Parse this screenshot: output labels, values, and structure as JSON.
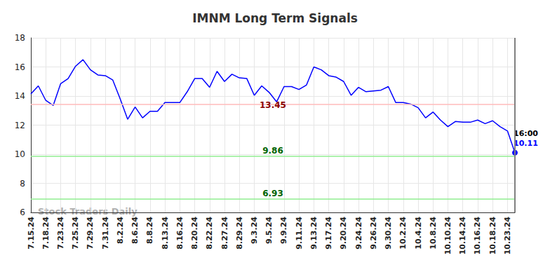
{
  "chart_data": {
    "type": "line",
    "title": "IMNM Long Term Signals",
    "categories": [
      "7.15.24",
      null,
      "7.18.24",
      null,
      "7.23.24",
      null,
      "7.25.24",
      null,
      "7.29.24",
      null,
      "7.31.24",
      null,
      "8.2.24",
      null,
      "8.6.24",
      null,
      "8.8.24",
      null,
      "8.13.24",
      null,
      "8.16.24",
      null,
      "8.20.24",
      null,
      "8.22.24",
      null,
      "8.27.24",
      null,
      "8.29.24",
      null,
      "9.3.24",
      null,
      "9.5.24",
      null,
      "9.9.24",
      null,
      "9.11.24",
      null,
      "9.13.24",
      null,
      "9.17.24",
      null,
      "9.20.24",
      null,
      "9.24.24",
      null,
      "9.26.24",
      null,
      "9.30.24",
      null,
      "10.2.24",
      null,
      "10.4.24",
      null,
      "10.8.24",
      null,
      "10.10.24",
      null,
      "10.14.24",
      null,
      "10.16.24",
      null,
      "10.18.24",
      null,
      "10.23.24",
      null
    ],
    "values": [
      14.15,
      14.7,
      13.7,
      13.35,
      14.85,
      15.2,
      16.05,
      16.5,
      15.8,
      15.45,
      15.4,
      15.1,
      13.8,
      12.4,
      13.25,
      12.5,
      12.95,
      12.95,
      13.55,
      13.55,
      13.55,
      14.3,
      15.2,
      15.2,
      14.6,
      15.7,
      15.0,
      15.5,
      15.25,
      15.2,
      14.05,
      14.7,
      14.25,
      13.6,
      14.65,
      14.65,
      14.45,
      14.75,
      16.0,
      15.8,
      15.4,
      15.3,
      15.0,
      14.05,
      14.6,
      14.3,
      14.35,
      14.4,
      14.65,
      13.55,
      13.55,
      13.45,
      13.2,
      12.5,
      12.9,
      12.35,
      11.9,
      12.25,
      12.2,
      12.2,
      12.35,
      12.1,
      12.3,
      11.9,
      11.6,
      10.11
    ],
    "color": "#0000ff",
    "ylim": [
      6,
      18
    ],
    "yticks": [
      6,
      8,
      10,
      12,
      14,
      16,
      18
    ],
    "grid": true,
    "signal_lines": [
      {
        "value": 13.45,
        "color": "#ffbbbb"
      },
      {
        "value": 9.86,
        "color": "#90ee90"
      },
      {
        "value": 6.93,
        "color": "#90ee90"
      }
    ],
    "last_point_label": "16:00",
    "watermark": "Stock Traders Daily"
  }
}
